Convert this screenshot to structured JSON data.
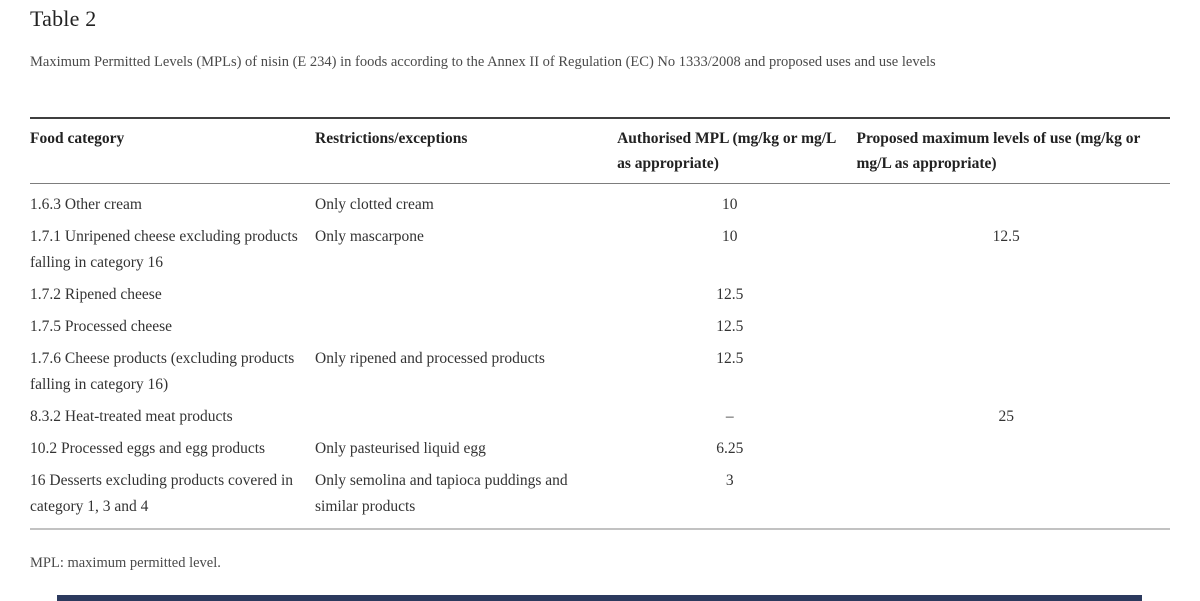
{
  "page": {
    "title": "Table 2",
    "caption": "Maximum Permitted Levels (MPLs) of nisin (E 234) in foods according to the Annex II of Regulation (EC) No 1333/2008 and proposed uses and use levels",
    "footnote": "MPL: maximum permitted level."
  },
  "table": {
    "columns": [
      "Food category",
      "Restrictions/exceptions",
      "Authorised MPL (mg/kg or mg/L as appropriate)",
      "Proposed maximum levels of use (mg/kg or mg/L as appropriate)"
    ],
    "rows": [
      {
        "food_category": "1.6.3 Other cream",
        "restrictions": "Only clotted cream",
        "authorised_mpl": "10",
        "proposed_level": ""
      },
      {
        "food_category": "1.7.1 Unripened cheese excluding products falling in category 16",
        "restrictions": "Only mascarpone",
        "authorised_mpl": "10",
        "proposed_level": "12.5"
      },
      {
        "food_category": "1.7.2 Ripened cheese",
        "restrictions": "",
        "authorised_mpl": "12.5",
        "proposed_level": ""
      },
      {
        "food_category": "1.7.5 Processed cheese",
        "restrictions": "",
        "authorised_mpl": "12.5",
        "proposed_level": ""
      },
      {
        "food_category": "1.7.6 Cheese products (excluding products falling in category 16)",
        "restrictions": "Only ripened and processed products",
        "authorised_mpl": "12.5",
        "proposed_level": ""
      },
      {
        "food_category": "8.3.2 Heat-treated meat products",
        "restrictions": "",
        "authorised_mpl": "–",
        "proposed_level": "25"
      },
      {
        "food_category": "10.2 Processed eggs and egg products",
        "restrictions": "Only pasteurised liquid egg",
        "authorised_mpl": "6.25",
        "proposed_level": ""
      },
      {
        "food_category": "16 Desserts excluding products covered in category 1, 3 and 4",
        "restrictions": "Only semolina and tapioca puddings and similar products",
        "authorised_mpl": "3",
        "proposed_level": ""
      }
    ]
  },
  "colors": {
    "text_dark": "#222222",
    "text_body": "#333333",
    "text_muted": "#4a4a4a",
    "rule_top": "#3f3f3f",
    "rule_header": "#7d7d7d",
    "rule_bottom": "#c2c2c2",
    "footer_bar": "#2c3a5e"
  }
}
